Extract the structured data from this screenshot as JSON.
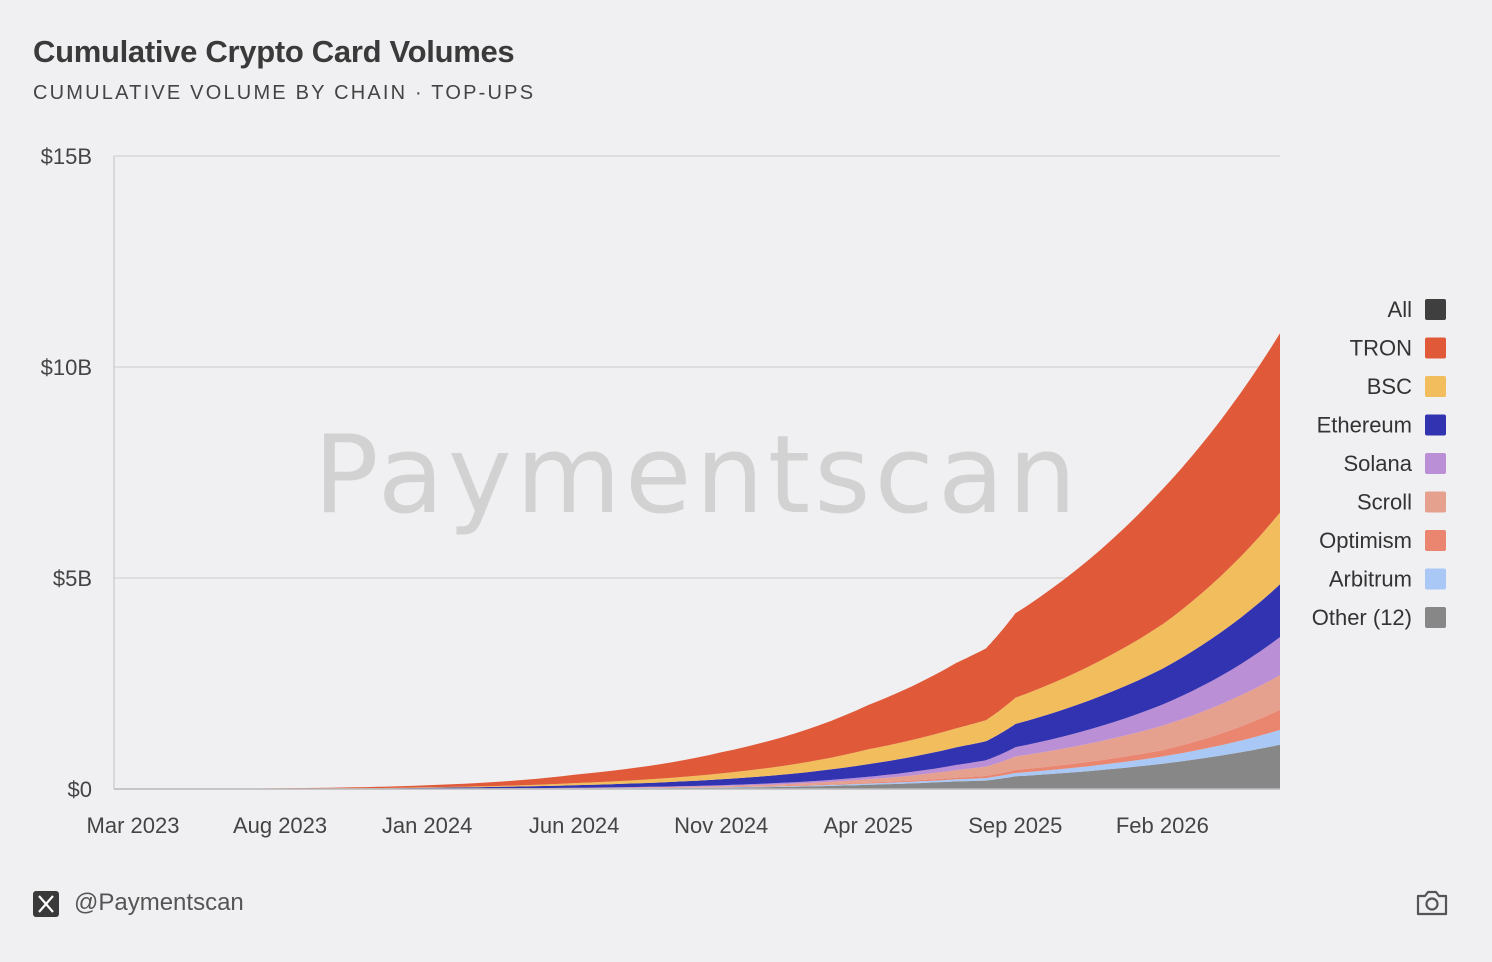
{
  "header": {
    "title": "Cumulative Crypto Card Volumes",
    "subtitle": "CUMULATIVE VOLUME BY CHAIN · TOP-UPS"
  },
  "watermark": "Paymentscan",
  "footer": {
    "handle": "@Paymentscan",
    "x_icon": "x-logo-icon",
    "camera_icon": "camera-icon"
  },
  "chart_data": {
    "type": "area",
    "stacked": true,
    "title": "Cumulative Crypto Card Volumes",
    "subtitle": "CUMULATIVE VOLUME BY CHAIN · TOP-UPS",
    "x": [
      "2023-03",
      "2023-08",
      "2024-01",
      "2024-06",
      "2024-11",
      "2025-04",
      "2025-07",
      "2025-08",
      "2025-09",
      "2026-02",
      "2026-06"
    ],
    "x_ticks": [
      "Mar 2023",
      "Aug 2023",
      "Jan 2024",
      "Jun 2024",
      "Nov 2024",
      "Apr 2025",
      "Sep 2025",
      "Feb 2026"
    ],
    "y_ticks": [
      "$0",
      "$5B",
      "$10B",
      "$15B"
    ],
    "ylim": [
      0,
      15
    ],
    "y_unit": "B",
    "grid": true,
    "legend_position": "right",
    "legend": [
      {
        "name": "All",
        "color": "#3f3f3f"
      },
      {
        "name": "TRON",
        "color": "#e05a3a"
      },
      {
        "name": "BSC",
        "color": "#f2bd5c"
      },
      {
        "name": "Ethereum",
        "color": "#3233b0"
      },
      {
        "name": "Solana",
        "color": "#bb8fd6"
      },
      {
        "name": "Scroll",
        "color": "#e6a08e"
      },
      {
        "name": "Optimism",
        "color": "#ea8570"
      },
      {
        "name": "Arbitrum",
        "color": "#a9c8f5"
      },
      {
        "name": "Other (12)",
        "color": "#878787"
      }
    ],
    "series": [
      {
        "name": "Other (12)",
        "color": "#878787",
        "values": [
          0,
          0,
          0.003,
          0.01,
          0.03,
          0.1,
          0.18,
          0.2,
          0.3,
          0.6,
          1.05
        ]
      },
      {
        "name": "Arbitrum",
        "color": "#a9c8f5",
        "values": [
          0,
          0,
          0.002,
          0.005,
          0.01,
          0.03,
          0.05,
          0.06,
          0.08,
          0.17,
          0.35
        ]
      },
      {
        "name": "Optimism",
        "color": "#ea8570",
        "values": [
          0,
          0,
          0.001,
          0.003,
          0.01,
          0.02,
          0.04,
          0.05,
          0.07,
          0.15,
          0.48
        ]
      },
      {
        "name": "Scroll",
        "color": "#e6a08e",
        "values": [
          0,
          0,
          0.002,
          0.005,
          0.02,
          0.08,
          0.18,
          0.22,
          0.32,
          0.58,
          0.82
        ]
      },
      {
        "name": "Solana",
        "color": "#bb8fd6",
        "values": [
          0,
          0,
          0.002,
          0.006,
          0.02,
          0.06,
          0.12,
          0.15,
          0.22,
          0.5,
          0.9
        ]
      },
      {
        "name": "Ethereum",
        "color": "#3233b0",
        "values": [
          0,
          0.005,
          0.02,
          0.06,
          0.14,
          0.3,
          0.42,
          0.45,
          0.55,
          0.85,
          1.25
        ]
      },
      {
        "name": "BSC",
        "color": "#f2bd5c",
        "values": [
          0,
          0.003,
          0.01,
          0.05,
          0.14,
          0.35,
          0.45,
          0.5,
          0.62,
          1.05,
          1.7
        ]
      },
      {
        "name": "TRON",
        "color": "#e05a3a",
        "values": [
          0,
          0.01,
          0.05,
          0.2,
          0.5,
          1.05,
          1.55,
          1.7,
          2.0,
          3.2,
          4.25
        ]
      }
    ]
  }
}
